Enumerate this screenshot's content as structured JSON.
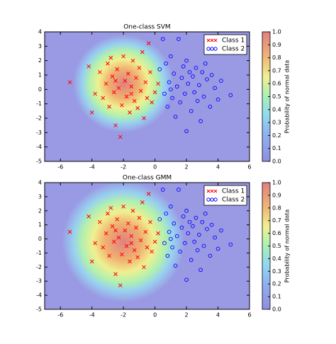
{
  "chart_data": [
    {
      "type": "scatter",
      "title": "One-class SVM",
      "xlim": [
        -7,
        6
      ],
      "ylim": [
        -5,
        4
      ],
      "xticks": [
        -6,
        -4,
        -2,
        0,
        2,
        4,
        6
      ],
      "yticks": [
        -5,
        -4,
        -3,
        -2,
        -1,
        0,
        1,
        2,
        3,
        4
      ],
      "legend": "upper right",
      "colorbar": {
        "label": "Probability of normal data",
        "lim": [
          0,
          1
        ],
        "ticks": [
          {
            "value": 0,
            "label": "0.0"
          },
          0.1,
          0.2,
          0.3,
          0.4,
          0.5,
          0.6,
          0.7,
          0.8,
          0.9,
          {
            "value": 1,
            "label": "1.0"
          }
        ]
      },
      "series": [
        {
          "name": "Class 1",
          "color": "red",
          "marker": "x",
          "x": [
            -5.4,
            -4,
            -4.2,
            -3.8,
            -3.5,
            -3.3,
            -3.1,
            -3,
            -2.9,
            -2.8,
            -2.7,
            -2.6,
            -2.5,
            -2.4,
            -2.3,
            -2.2,
            -2.1,
            -2,
            -1.9,
            -1.8,
            -1.7,
            -1.6,
            -1.5,
            -1.4,
            -1.3,
            -1.2,
            -1.1,
            -1,
            -0.9,
            -0.8,
            -0.7,
            -0.6,
            -0.5,
            -0.4,
            -0.3,
            -0.2,
            0,
            0.2,
            -1.5,
            -2.5
          ],
          "values": [
            0.5,
            -1.6,
            1.6,
            -0.3,
            1.2,
            -0.6,
            0.4,
            1.8,
            -1.2,
            2.2,
            0.9,
            -0.2,
            -2.5,
            1.4,
            0.1,
            -3.3,
            -1.1,
            2.3,
            0.6,
            -0.5,
            1.1,
            -1.6,
            0.2,
            2,
            -0.8,
            0.8,
            -1.3,
            1.5,
            -0.1,
            2.6,
            -2,
            0.5,
            -0.6,
            3.2,
            1.2,
            -0.9,
            -0.2,
            0.4,
            -0.3,
            0.6
          ]
        },
        {
          "name": "Class 2",
          "color": "blue",
          "marker": "o",
          "x": [
            0.3,
            0.5,
            0.6,
            0.7,
            0.8,
            0.9,
            1,
            1.1,
            1.2,
            1.3,
            1.4,
            1.5,
            1.6,
            1.7,
            1.8,
            1.9,
            2,
            2.1,
            2.2,
            2.3,
            2.4,
            2.5,
            2.6,
            2.7,
            2.8,
            2.9,
            3,
            3.1,
            3.3,
            3.5,
            3.6,
            3.8,
            4,
            4.2,
            4.8,
            1,
            2,
            3.2
          ],
          "values": [
            1.4,
            3.5,
            -0.3,
            1.8,
            -1.2,
            0.5,
            2.3,
            -0.6,
            1.1,
            -1.9,
            0.2,
            3.5,
            -0.9,
            0.8,
            1.6,
            -0.3,
            -2.9,
            0.4,
            1.2,
            -1.5,
            0.9,
            -0.2,
            1.5,
            -0.8,
            0.3,
            -2.2,
            1.2,
            -0.5,
            0.7,
            -1.2,
            1,
            0.1,
            -0.7,
            0.6,
            -0.4,
            0,
            2,
            1.8
          ]
        }
      ]
    },
    {
      "type": "scatter",
      "title": "One-class GMM",
      "xlim": [
        -7,
        6
      ],
      "ylim": [
        -5,
        4
      ],
      "xticks": [
        -6,
        -4,
        -2,
        0,
        2,
        4,
        6
      ],
      "yticks": [
        -5,
        -4,
        -3,
        -2,
        -1,
        0,
        1,
        2,
        3,
        4
      ],
      "legend": "upper right",
      "colorbar": {
        "label": "Probability of normal data",
        "lim": [
          0,
          1
        ],
        "ticks": [
          {
            "value": 0,
            "label": "0.0"
          },
          0.1,
          0.2,
          0.3,
          0.4,
          0.5,
          0.6,
          0.7,
          0.8,
          0.9,
          {
            "value": 1,
            "label": "1.0"
          }
        ]
      },
      "series": [
        {
          "name": "Class 1",
          "color": "red",
          "marker": "x",
          "x": [
            -5.4,
            -4,
            -4.2,
            -3.8,
            -3.5,
            -3.3,
            -3.1,
            -3,
            -2.9,
            -2.8,
            -2.7,
            -2.6,
            -2.5,
            -2.4,
            -2.3,
            -2.2,
            -2.1,
            -2,
            -1.9,
            -1.8,
            -1.7,
            -1.6,
            -1.5,
            -1.4,
            -1.3,
            -1.2,
            -1.1,
            -1,
            -0.9,
            -0.8,
            -0.7,
            -0.6,
            -0.5,
            -0.4,
            -0.3,
            -0.2,
            0,
            0.2,
            -1.5,
            -2.5
          ],
          "values": [
            0.5,
            -1.6,
            1.6,
            -0.3,
            1.2,
            -0.6,
            0.4,
            1.8,
            -1.2,
            2.2,
            0.9,
            -0.2,
            -2.5,
            1.4,
            0.1,
            -3.3,
            -1.1,
            2.3,
            0.6,
            -0.5,
            1.1,
            -1.6,
            0.2,
            2,
            -0.8,
            0.8,
            -1.3,
            1.5,
            -0.1,
            2.6,
            -2,
            0.5,
            -0.6,
            3.2,
            1.2,
            -0.9,
            -0.2,
            0.4,
            -0.3,
            0.6
          ]
        },
        {
          "name": "Class 2",
          "color": "blue",
          "marker": "o",
          "x": [
            0.3,
            0.5,
            0.6,
            0.7,
            0.8,
            0.9,
            1,
            1.1,
            1.2,
            1.3,
            1.4,
            1.5,
            1.6,
            1.7,
            1.8,
            1.9,
            2,
            2.1,
            2.2,
            2.3,
            2.4,
            2.5,
            2.6,
            2.7,
            2.8,
            2.9,
            3,
            3.1,
            3.3,
            3.5,
            3.6,
            3.8,
            4,
            4.2,
            4.8,
            1,
            2,
            3.2
          ],
          "values": [
            1.4,
            3.5,
            -0.3,
            1.8,
            -1.2,
            0.5,
            2.3,
            -0.6,
            1.1,
            -1.9,
            0.2,
            3.5,
            -0.9,
            0.8,
            1.6,
            -0.3,
            -2.9,
            0.4,
            1.2,
            -1.5,
            0.9,
            -0.2,
            1.5,
            -0.8,
            0.3,
            -2.2,
            1.2,
            -0.5,
            0.7,
            -1.2,
            1,
            0.1,
            -0.7,
            0.6,
            -0.4,
            0,
            2,
            1.8
          ]
        }
      ]
    }
  ]
}
